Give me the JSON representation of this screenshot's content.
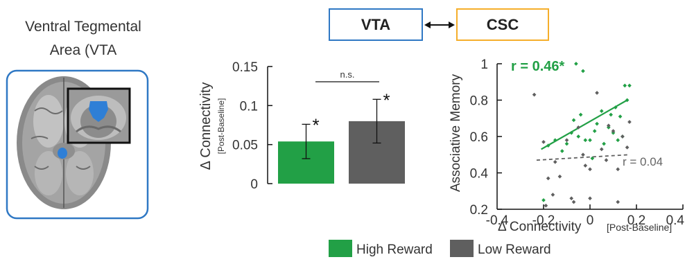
{
  "region": {
    "title_line1": "Ventral Tegmental",
    "title_line2": "Area (VTA"
  },
  "boxes": {
    "left": "VTA",
    "right": "CSC"
  },
  "colors": {
    "high": "#22a046",
    "low": "#5f5f5f",
    "vta_box": "#2f78c4",
    "csc_box": "#f5ae2a"
  },
  "chart_data": [
    {
      "type": "bar",
      "categories": [
        "High Reward",
        "Low Reward"
      ],
      "values": [
        0.054,
        0.08
      ],
      "error": [
        0.022,
        0.028
      ],
      "significance": [
        "*",
        "*"
      ],
      "comparison_label": "n.s.",
      "ylabel": "Δ Connectivity",
      "ylabel_sub": "[Post-Baseline]",
      "ylim": [
        0,
        0.15
      ],
      "yticks": [
        "0",
        "0.05",
        "0.1",
        "0.15"
      ],
      "ytick_values": [
        0,
        0.05,
        0.1,
        0.15
      ]
    },
    {
      "type": "scatter",
      "xlabel": "Δ Connectivity",
      "xlabel_sub": "[Post-Baseline]",
      "ylabel": "Associative Memory",
      "xlim": [
        -0.4,
        0.4
      ],
      "ylim": [
        0.2,
        1.0
      ],
      "xticks": [
        "-0.4",
        "-0.2",
        "0",
        "0.2",
        "0.4"
      ],
      "xtick_values": [
        -0.4,
        -0.2,
        0,
        0.2,
        0.4
      ],
      "yticks": [
        "0.2",
        "0.4",
        "0.6",
        "0.8",
        "1"
      ],
      "ytick_values": [
        0.2,
        0.4,
        0.6,
        0.8,
        1.0
      ],
      "series": [
        {
          "name": "High Reward",
          "r_label": "r = 0.46*",
          "points": [
            [
              -0.2,
              0.25
            ],
            [
              -0.18,
              0.55
            ],
            [
              -0.15,
              0.58
            ],
            [
              -0.12,
              0.52
            ],
            [
              -0.1,
              0.56
            ],
            [
              -0.08,
              0.62
            ],
            [
              -0.07,
              0.69
            ],
            [
              -0.05,
              0.6
            ],
            [
              -0.04,
              0.72
            ],
            [
              -0.03,
              0.96
            ],
            [
              -0.02,
              0.58
            ],
            [
              0.0,
              0.58
            ],
            [
              0.02,
              0.63
            ],
            [
              0.03,
              0.67
            ],
            [
              0.05,
              0.74
            ],
            [
              0.06,
              0.56
            ],
            [
              0.08,
              0.65
            ],
            [
              0.09,
              0.72
            ],
            [
              0.1,
              0.62
            ],
            [
              0.11,
              0.76
            ],
            [
              0.12,
              0.58
            ],
            [
              0.13,
              0.71
            ],
            [
              0.14,
              0.6
            ],
            [
              0.15,
              0.88
            ],
            [
              0.16,
              0.8
            ],
            [
              0.17,
              0.88
            ],
            [
              -0.06,
              1.0
            ],
            [
              0.01,
              0.48
            ]
          ],
          "fit": [
            [
              -0.21,
              0.53
            ],
            [
              0.16,
              0.8
            ]
          ]
        },
        {
          "name": "Low Reward",
          "r_label": "r = 0.04",
          "points": [
            [
              -0.24,
              0.83
            ],
            [
              -0.2,
              0.57
            ],
            [
              -0.19,
              0.22
            ],
            [
              -0.18,
              0.37
            ],
            [
              -0.16,
              0.28
            ],
            [
              -0.15,
              0.46
            ],
            [
              -0.13,
              0.38
            ],
            [
              -0.1,
              0.58
            ],
            [
              -0.08,
              0.26
            ],
            [
              -0.07,
              0.24
            ],
            [
              -0.05,
              0.65
            ],
            [
              -0.03,
              0.5
            ],
            [
              -0.02,
              0.44
            ],
            [
              0.0,
              0.42
            ],
            [
              0.0,
              0.26
            ],
            [
              0.03,
              0.84
            ],
            [
              0.05,
              0.53
            ],
            [
              0.07,
              0.47
            ],
            [
              0.08,
              0.66
            ],
            [
              0.1,
              0.63
            ],
            [
              0.12,
              0.42
            ],
            [
              0.12,
              0.24
            ],
            [
              0.14,
              0.6
            ],
            [
              0.16,
              0.54
            ],
            [
              0.17,
              0.68
            ]
          ],
          "fit": [
            [
              -0.23,
              0.47
            ],
            [
              0.17,
              0.5
            ]
          ]
        }
      ]
    }
  ]
}
